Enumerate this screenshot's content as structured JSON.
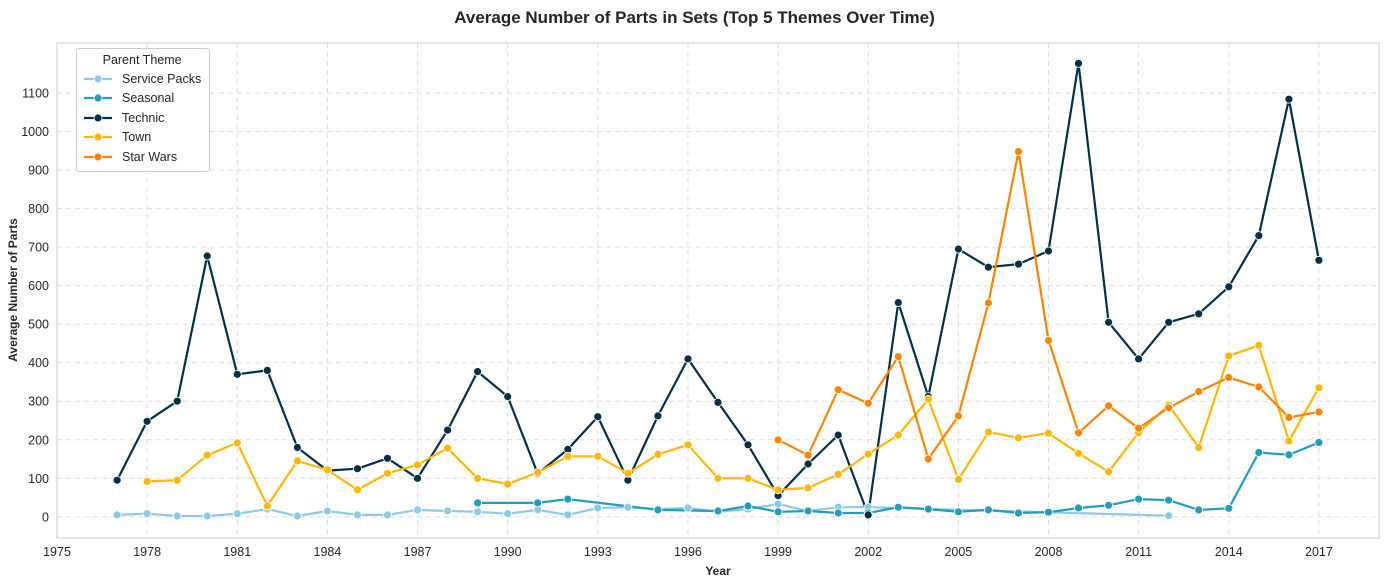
{
  "chart_data": {
    "type": "line",
    "title": "Average Number of Parts in Sets (Top 5 Themes Over Time)",
    "xlabel": "Year",
    "ylabel": "Average Number of Parts",
    "xlim": [
      1975,
      2019
    ],
    "ylim": [
      -55,
      1230
    ],
    "x_ticks": [
      1975,
      1978,
      1981,
      1984,
      1987,
      1990,
      1993,
      1996,
      1999,
      2002,
      2005,
      2008,
      2011,
      2014,
      2017
    ],
    "y_ticks": [
      0,
      100,
      200,
      300,
      400,
      500,
      600,
      700,
      800,
      900,
      1000,
      1100
    ],
    "grid": true,
    "legend": {
      "title": "Parent Theme",
      "position": "upper-left"
    },
    "series": [
      {
        "name": "Service Packs",
        "color": "#8ecae6",
        "points": [
          [
            1977,
            5
          ],
          [
            1978,
            8
          ],
          [
            1979,
            2
          ],
          [
            1980,
            2
          ],
          [
            1981,
            8
          ],
          [
            1982,
            20
          ],
          [
            1983,
            2
          ],
          [
            1984,
            15
          ],
          [
            1985,
            5
          ],
          [
            1986,
            5
          ],
          [
            1987,
            18
          ],
          [
            1988,
            15
          ],
          [
            1989,
            13
          ],
          [
            1990,
            8
          ],
          [
            1991,
            18
          ],
          [
            1992,
            5
          ],
          [
            1993,
            23
          ],
          [
            1994,
            25
          ],
          [
            1995,
            20
          ],
          [
            1996,
            23
          ],
          [
            1997,
            13
          ],
          [
            1998,
            20
          ],
          [
            1999,
            33
          ],
          [
            2000,
            15
          ],
          [
            2001,
            25
          ],
          [
            2002,
            25
          ],
          [
            2012,
            3
          ]
        ]
      },
      {
        "name": "Seasonal",
        "color": "#219ebc",
        "points": [
          [
            1989,
            36
          ],
          [
            1991,
            36
          ],
          [
            1992,
            46
          ],
          [
            1995,
            18
          ],
          [
            1997,
            15
          ],
          [
            1998,
            28
          ],
          [
            1999,
            13
          ],
          [
            2000,
            15
          ],
          [
            2001,
            10
          ],
          [
            2002,
            10
          ],
          [
            2003,
            25
          ],
          [
            2004,
            20
          ],
          [
            2005,
            13
          ],
          [
            2006,
            18
          ],
          [
            2007,
            10
          ],
          [
            2008,
            12
          ],
          [
            2009,
            23
          ],
          [
            2010,
            30
          ],
          [
            2011,
            46
          ],
          [
            2012,
            43
          ],
          [
            2013,
            18
          ],
          [
            2014,
            22
          ],
          [
            2015,
            167
          ],
          [
            2016,
            161
          ],
          [
            2017,
            193
          ]
        ]
      },
      {
        "name": "Technic",
        "color": "#023047",
        "points": [
          [
            1977,
            95
          ],
          [
            1978,
            248
          ],
          [
            1979,
            300
          ],
          [
            1980,
            677
          ],
          [
            1981,
            370
          ],
          [
            1982,
            380
          ],
          [
            1983,
            180
          ],
          [
            1984,
            120
          ],
          [
            1985,
            125
          ],
          [
            1986,
            152
          ],
          [
            1987,
            100
          ],
          [
            1988,
            225
          ],
          [
            1989,
            377
          ],
          [
            1990,
            312
          ],
          [
            1991,
            112
          ],
          [
            1992,
            175
          ],
          [
            1993,
            260
          ],
          [
            1994,
            95
          ],
          [
            1995,
            262
          ],
          [
            1996,
            410
          ],
          [
            1997,
            297
          ],
          [
            1998,
            187
          ],
          [
            1999,
            55
          ],
          [
            2000,
            137
          ],
          [
            2001,
            212
          ],
          [
            2002,
            5
          ],
          [
            2003,
            556
          ],
          [
            2004,
            312
          ],
          [
            2005,
            695
          ],
          [
            2006,
            648
          ],
          [
            2007,
            656
          ],
          [
            2008,
            690
          ],
          [
            2009,
            1177
          ],
          [
            2010,
            505
          ],
          [
            2011,
            410
          ],
          [
            2012,
            505
          ],
          [
            2013,
            527
          ],
          [
            2014,
            597
          ],
          [
            2015,
            730
          ],
          [
            2016,
            1084
          ],
          [
            2017,
            666
          ]
        ]
      },
      {
        "name": "Town",
        "color": "#ffb703",
        "points": [
          [
            1978,
            92
          ],
          [
            1979,
            95
          ],
          [
            1980,
            160
          ],
          [
            1981,
            192
          ],
          [
            1982,
            28
          ],
          [
            1983,
            145
          ],
          [
            1984,
            122
          ],
          [
            1985,
            70
          ],
          [
            1986,
            113
          ],
          [
            1987,
            135
          ],
          [
            1988,
            178
          ],
          [
            1989,
            100
          ],
          [
            1990,
            85
          ],
          [
            1991,
            115
          ],
          [
            1992,
            157
          ],
          [
            1993,
            157
          ],
          [
            1994,
            113
          ],
          [
            1995,
            162
          ],
          [
            1996,
            187
          ],
          [
            1997,
            100
          ],
          [
            1998,
            100
          ],
          [
            1999,
            70
          ],
          [
            2000,
            75
          ],
          [
            2001,
            110
          ],
          [
            2002,
            163
          ],
          [
            2003,
            212
          ],
          [
            2004,
            305
          ],
          [
            2005,
            97
          ],
          [
            2006,
            220
          ],
          [
            2007,
            205
          ],
          [
            2008,
            217
          ],
          [
            2009,
            165
          ],
          [
            2010,
            117
          ],
          [
            2011,
            218
          ],
          [
            2012,
            290
          ],
          [
            2013,
            180
          ],
          [
            2014,
            418
          ],
          [
            2015,
            445
          ],
          [
            2016,
            197
          ],
          [
            2017,
            335
          ]
        ]
      },
      {
        "name": "Star Wars",
        "color": "#fb8500",
        "points": [
          [
            1999,
            200
          ],
          [
            2000,
            160
          ],
          [
            2001,
            330
          ],
          [
            2002,
            295
          ],
          [
            2003,
            416
          ],
          [
            2004,
            150
          ],
          [
            2005,
            262
          ],
          [
            2006,
            555
          ],
          [
            2007,
            948
          ],
          [
            2008,
            458
          ],
          [
            2009,
            218
          ],
          [
            2010,
            288
          ],
          [
            2011,
            230
          ],
          [
            2012,
            283
          ],
          [
            2013,
            325
          ],
          [
            2014,
            362
          ],
          [
            2015,
            337
          ],
          [
            2016,
            258
          ],
          [
            2017,
            272
          ]
        ]
      }
    ]
  }
}
